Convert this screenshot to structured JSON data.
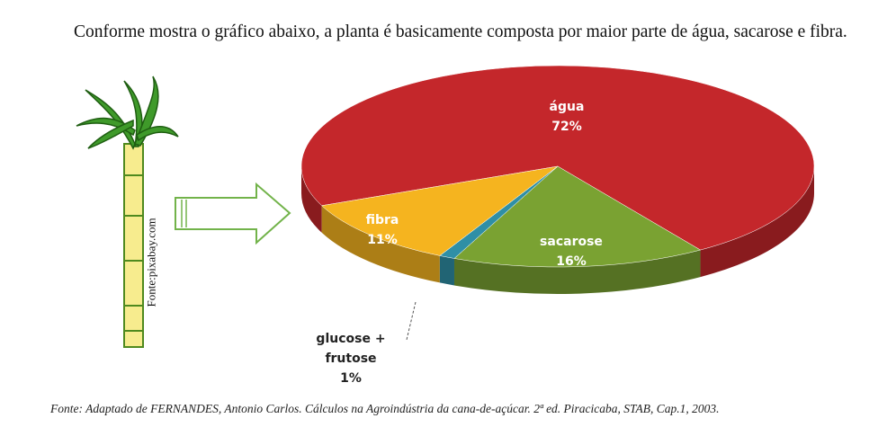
{
  "paragraph": "Conforme mostra o gráfico abaixo, a planta é basicamente composta por maior parte de água, sacarose e fibra.",
  "image_credit": "Fonte:pixabay.com",
  "chart_data": {
    "type": "pie",
    "categories": [
      "água",
      "sacarose",
      "glucose + frutose",
      "fibra"
    ],
    "values": [
      72,
      16,
      1,
      11
    ],
    "value_labels": [
      "72%",
      "16%",
      "1%",
      "11%"
    ],
    "colors": [
      "#c4272b",
      "#7aa232",
      "#2f8fa6",
      "#f5b41f"
    ]
  },
  "source": "Fonte: Adaptado de FERNANDES, Antonio Carlos. Cálculos na Agroindústria da cana-de-açúcar. 2ª ed. Piracicaba, STAB, Cap.1, 2003."
}
